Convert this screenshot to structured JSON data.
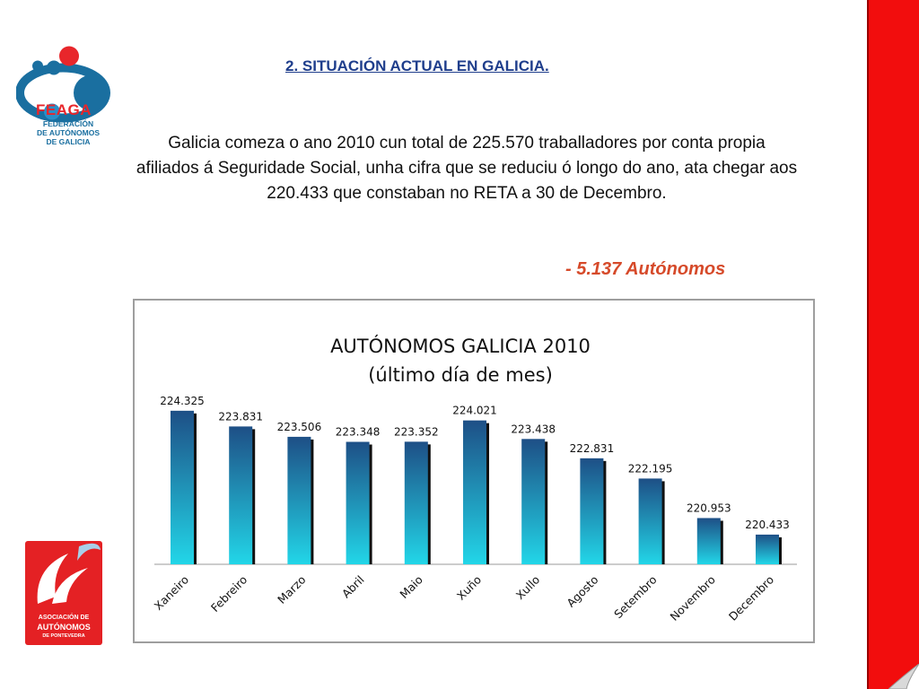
{
  "logos": {
    "top": {
      "icon": "feaga-logo-icon",
      "name": "FEAGA",
      "subtitle_lines": [
        "FEDERACIÓN",
        "DE AUTÓNOMOS",
        "DE GALICIA"
      ],
      "colors": {
        "red": "#e8262b",
        "blue": "#1a6fa0"
      }
    },
    "bottom": {
      "icon": "autonomos-pontevedra-logo-icon",
      "line1": "ASOCIACIÓN DE",
      "line2": "AUTÓNOMOS",
      "line3": "DE PONTEVEDRA",
      "color": "#e42124"
    }
  },
  "section_title": "2. SITUACIÓN ACTUAL EN GALICIA.",
  "paragraph": "Galicia comeza o ano 2010 cun total de 225.570   traballadores por conta propia afiliados á Seguridade Social, unha cifra que se reduciu ó longo do ano, ata chegar aos 220.433 que constaban no RETA a 30 de Decembro.",
  "highlight": {
    "amount": "- 5.137",
    "label": "Autónomos",
    "color": "#d64a2a"
  },
  "accent_colors": {
    "side_band": "#f20d0d",
    "title": "#1f3e8c"
  },
  "chart_data": {
    "type": "bar",
    "title": "AUTÓNOMOS GALICIA 2010",
    "subtitle": "(último día de mes)",
    "categories": [
      "Xaneiro",
      "Febreiro",
      "Marzo",
      "Abril",
      "Maio",
      "Xuño",
      "Xullo",
      "Agosto",
      "Setembro",
      "Novembro",
      "Decembro"
    ],
    "values": [
      224.325,
      223.831,
      223.506,
      223.348,
      223.352,
      224.021,
      223.438,
      222.831,
      222.195,
      220.953,
      220.433
    ],
    "labels": [
      "224.325",
      "223.831",
      "223.506",
      "223.348",
      "223.352",
      "224.021",
      "223.438",
      "222.831",
      "222.195",
      "220.953",
      "220.433"
    ],
    "ylim": [
      219.5,
      224.8
    ],
    "xlabel": "",
    "ylabel": "",
    "grid": false,
    "legend": "none",
    "bar_gradient": {
      "top": "#1e4f86",
      "bottom": "#22d6e8"
    }
  }
}
